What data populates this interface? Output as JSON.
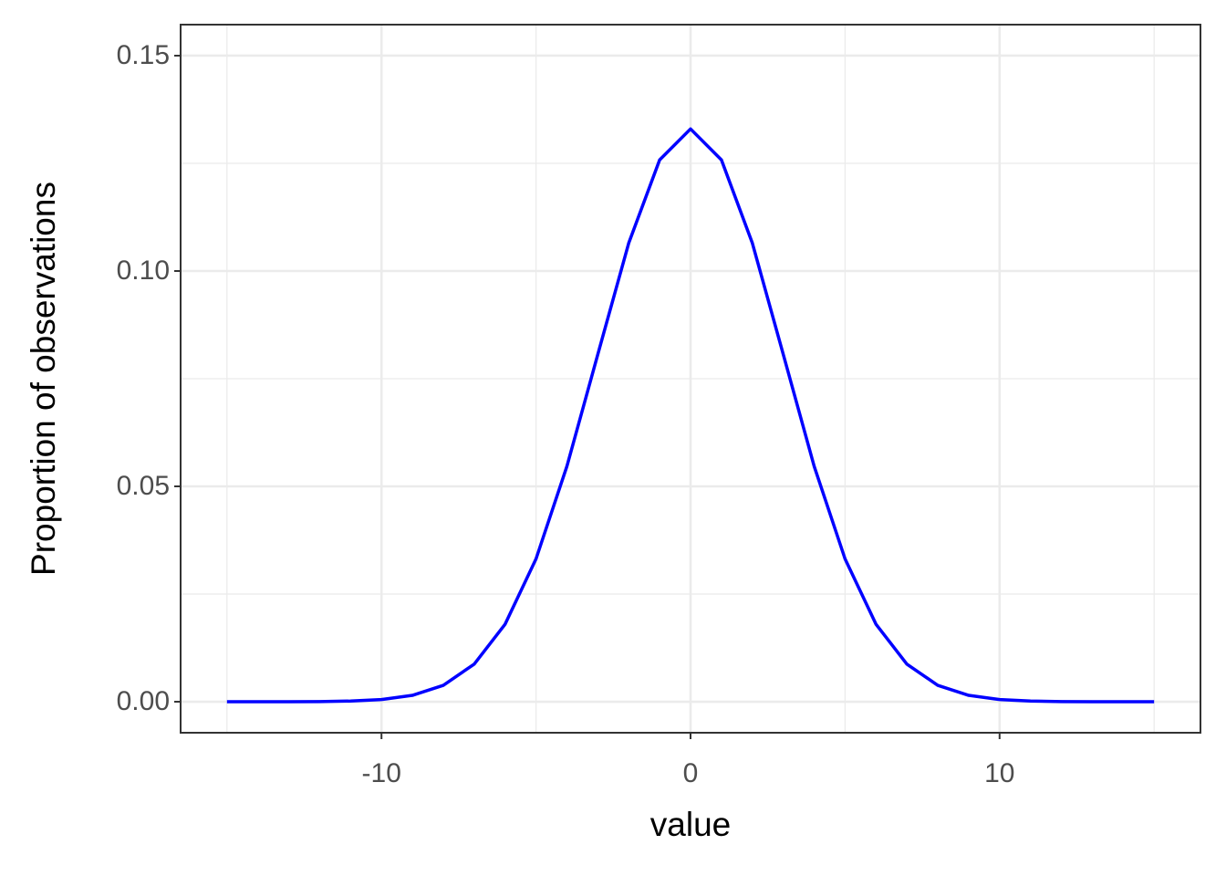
{
  "chart_data": {
    "type": "line",
    "xlabel": "value",
    "ylabel": "Proportion of observations",
    "x": [
      -15,
      -14,
      -13,
      -12,
      -11,
      -10,
      -9,
      -8,
      -7,
      -6,
      -5,
      -4,
      -3,
      -2,
      -1,
      0,
      1,
      2,
      3,
      4,
      5,
      6,
      7,
      8,
      9,
      10,
      11,
      12,
      13,
      14,
      15
    ],
    "series": [
      {
        "color": "#0000ff",
        "values": [
          0,
          0,
          1e-05,
          4e-05,
          0.00016,
          0.00051,
          0.00148,
          0.0038,
          0.00874,
          0.018,
          0.03316,
          0.05467,
          0.08066,
          0.10648,
          0.12579,
          0.13298,
          0.12579,
          0.10648,
          0.08066,
          0.05467,
          0.03316,
          0.018,
          0.00874,
          0.0038,
          0.00148,
          0.00051,
          0.00016,
          4e-05,
          1e-05,
          0,
          0
        ]
      }
    ],
    "xlim": [
      -16.5,
      16.5
    ],
    "ylim": [
      -0.0072,
      0.1572
    ],
    "xticks": [
      -10,
      0,
      10
    ],
    "yticks": [
      {
        "value": 0,
        "label": "0.00"
      },
      {
        "value": 0.05,
        "label": "0.05"
      },
      {
        "value": 0.1,
        "label": "0.10"
      },
      {
        "value": 0.15,
        "label": "0.15"
      }
    ],
    "xminor": [
      -15,
      -5,
      5,
      15
    ],
    "yminor": [
      0.025,
      0.075,
      0.125
    ],
    "grid": true
  }
}
